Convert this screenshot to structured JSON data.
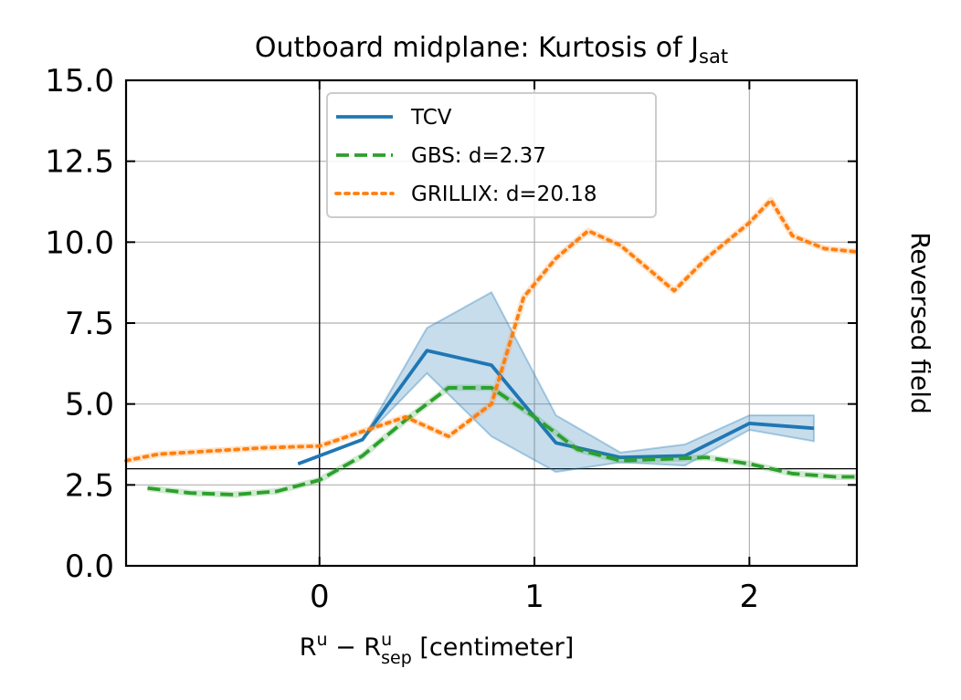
{
  "chart_data": {
    "type": "line",
    "title": "Outboard midplane: Kurtosis of J",
    "title_sub": "sat",
    "xlabel": {
      "base1": "R",
      "sup1": "u",
      "minus": " − ",
      "base2": "R",
      "sup2": "u",
      "sub2": "sep",
      "unit": " [centimeter]"
    },
    "ylabel": "",
    "side_label": "Reversed field",
    "xlim": [
      -0.9,
      2.5
    ],
    "ylim": [
      0,
      15
    ],
    "xticks": [
      {
        "value": 0,
        "label": "0"
      },
      {
        "value": 1,
        "label": "1"
      },
      {
        "value": 2,
        "label": "2"
      }
    ],
    "yticks": [
      {
        "value": 0,
        "label": "0.0"
      },
      {
        "value": 2.5,
        "label": "2.5"
      },
      {
        "value": 5,
        "label": "5.0"
      },
      {
        "value": 7.5,
        "label": "7.5"
      },
      {
        "value": 10,
        "label": "10.0"
      },
      {
        "value": 12.5,
        "label": "12.5"
      },
      {
        "value": 15,
        "label": "15.0"
      }
    ],
    "grid": true,
    "reference_lines": {
      "vertical_x": 0,
      "horizontal_y": 3
    },
    "legend_position": "upper-center",
    "series": [
      {
        "name": "TCV",
        "style": "solid",
        "color": "#1f77b4",
        "x": [
          -0.1,
          0.2,
          0.5,
          0.8,
          1.1,
          1.4,
          1.7,
          2.0,
          2.3
        ],
        "y": [
          3.15,
          3.9,
          6.65,
          6.2,
          3.8,
          3.35,
          3.4,
          4.4,
          4.25
        ],
        "band_upper": [
          3.15,
          3.9,
          7.35,
          8.45,
          4.65,
          3.5,
          3.75,
          4.65,
          4.65
        ],
        "band_lower": [
          3.15,
          3.9,
          5.95,
          4.0,
          2.9,
          3.2,
          3.1,
          4.2,
          3.85
        ]
      },
      {
        "name": "GBS: d=2.37",
        "style": "dashed",
        "color": "#2ca02c",
        "x": [
          -0.8,
          -0.6,
          -0.4,
          -0.2,
          0.0,
          0.2,
          0.4,
          0.6,
          0.8,
          1.0,
          1.2,
          1.4,
          1.6,
          1.8,
          2.0,
          2.2,
          2.4,
          2.5
        ],
        "y": [
          2.4,
          2.25,
          2.2,
          2.3,
          2.65,
          3.4,
          4.5,
          5.5,
          5.5,
          4.6,
          3.6,
          3.25,
          3.3,
          3.35,
          3.15,
          2.85,
          2.75,
          2.75
        ]
      },
      {
        "name": "GRILLIX: d=20.18",
        "style": "dotted",
        "color": "#ff7f0e",
        "x": [
          -0.9,
          -0.75,
          -0.5,
          -0.25,
          0.0,
          0.2,
          0.4,
          0.6,
          0.8,
          0.95,
          1.1,
          1.25,
          1.4,
          1.65,
          1.8,
          2.0,
          2.1,
          2.2,
          2.35,
          2.5
        ],
        "y": [
          3.25,
          3.45,
          3.55,
          3.65,
          3.7,
          4.15,
          4.6,
          4.0,
          5.0,
          8.3,
          9.5,
          10.35,
          9.9,
          8.5,
          9.5,
          10.6,
          11.3,
          10.2,
          9.8,
          9.7
        ]
      }
    ]
  }
}
